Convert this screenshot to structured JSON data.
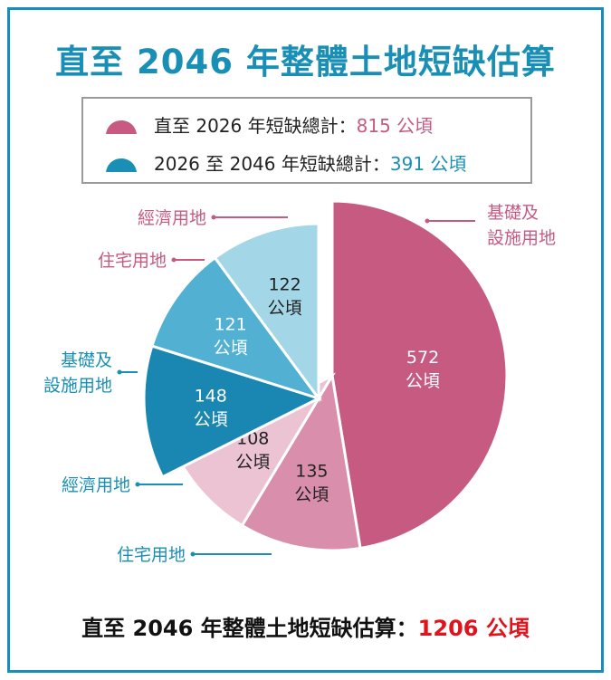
{
  "title": "直至 2046 年整體土地短缺估算",
  "legend": [
    {
      "label": "直至 2026 年短缺總計：",
      "value": "815 公頃",
      "color": "#c85a82"
    },
    {
      "label": "2026 至 2046 年短缺總計：",
      "value": "391 公頃",
      "color": "#1a8fb6"
    }
  ],
  "footer": {
    "label": "直至 2046 年整體土地短缺估算：",
    "total": "1206 公頃"
  },
  "chart_data": {
    "type": "pie",
    "unit": "公頃",
    "groups": [
      {
        "name": "直至 2026 年短缺總計",
        "total": 815,
        "slices": [
          {
            "category": "基礎及設施用地",
            "label_lines": [
              "基礎及",
              "設施用地"
            ],
            "value": 572,
            "value_label": "572",
            "color": "#c65a80"
          },
          {
            "category": "經濟用地",
            "label_lines": [
              "經濟用地"
            ],
            "value": 135,
            "value_label": "135",
            "color": "#d98fab"
          },
          {
            "category": "住宅用地",
            "label_lines": [
              "住宅用地"
            ],
            "value": 108,
            "value_label": "108",
            "color": "#ebc3d2"
          }
        ]
      },
      {
        "name": "2026 至 2046 年短缺總計",
        "total": 391,
        "slices": [
          {
            "category": "基礎及設施用地",
            "label_lines": [
              "基礎及",
              "設施用地"
            ],
            "value": 148,
            "value_label": "148",
            "color": "#1a87b2"
          },
          {
            "category": "經濟用地",
            "label_lines": [
              "經濟用地"
            ],
            "value": 121,
            "value_label": "121",
            "color": "#52b1d3"
          },
          {
            "category": "住宅用地",
            "label_lines": [
              "住宅用地"
            ],
            "value": 122,
            "value_label": "122",
            "color": "#a3d6e7"
          }
        ]
      }
    ],
    "total": 1206,
    "legend_position": "top"
  }
}
